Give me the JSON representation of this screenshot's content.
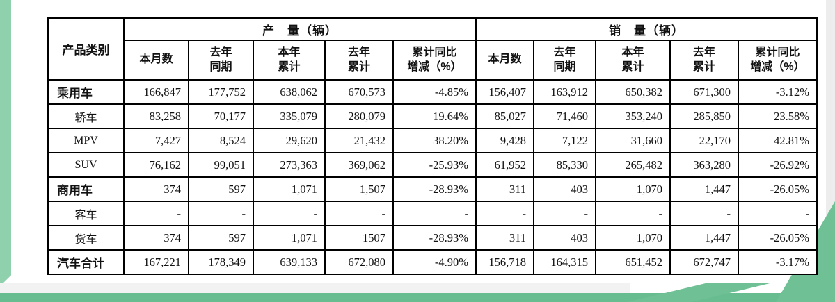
{
  "decoration": {
    "accent_green": "#6fc094",
    "accent_green_light": "#8fd1ad",
    "bottom_band_green": "#67bd90",
    "gray_band": "#f2f2f3"
  },
  "table": {
    "corner_header": "产品类别",
    "groups": {
      "production": "产　量（辆）",
      "sales": "销　量（辆）"
    },
    "sub_headers": [
      "本月数",
      "去年\n同期",
      "本年\n累计",
      "去年\n累计",
      "累计同比\n增减（%）"
    ],
    "rows": [
      {
        "label": "乘用车",
        "emphasis": true,
        "cells": [
          "166,847",
          "177,752",
          "638,062",
          "670,573",
          "-4.85%",
          "156,407",
          "163,912",
          "650,382",
          "671,300",
          "-3.12%"
        ]
      },
      {
        "label": "轿车",
        "emphasis": false,
        "cells": [
          "83,258",
          "70,177",
          "335,079",
          "280,079",
          "19.64%",
          "85,027",
          "71,460",
          "353,240",
          "285,850",
          "23.58%"
        ]
      },
      {
        "label": "MPV",
        "emphasis": false,
        "cells": [
          "7,427",
          "8,524",
          "29,620",
          "21,432",
          "38.20%",
          "9,428",
          "7,122",
          "31,660",
          "22,170",
          "42.81%"
        ]
      },
      {
        "label": "SUV",
        "emphasis": false,
        "cells": [
          "76,162",
          "99,051",
          "273,363",
          "369,062",
          "-25.93%",
          "61,952",
          "85,330",
          "265,482",
          "363,280",
          "-26.92%"
        ]
      },
      {
        "label": "商用车",
        "emphasis": true,
        "cells": [
          "374",
          "597",
          "1,071",
          "1,507",
          "-28.93%",
          "311",
          "403",
          "1,070",
          "1,447",
          "-26.05%"
        ]
      },
      {
        "label": "客车",
        "emphasis": false,
        "cells": [
          "-",
          "-",
          "-",
          "-",
          "-",
          "-",
          "-",
          "-",
          "-",
          "-"
        ]
      },
      {
        "label": "货车",
        "emphasis": false,
        "cells": [
          "374",
          "597",
          "1,071",
          "1507",
          "-28.93%",
          "311",
          "403",
          "1,070",
          "1,447",
          "-26.05%"
        ]
      },
      {
        "label": "汽车合计",
        "emphasis": true,
        "cells": [
          "167,221",
          "178,349",
          "639,133",
          "672,080",
          "-4.90%",
          "156,718",
          "164,315",
          "651,452",
          "672,747",
          "-3.17%"
        ]
      }
    ]
  }
}
